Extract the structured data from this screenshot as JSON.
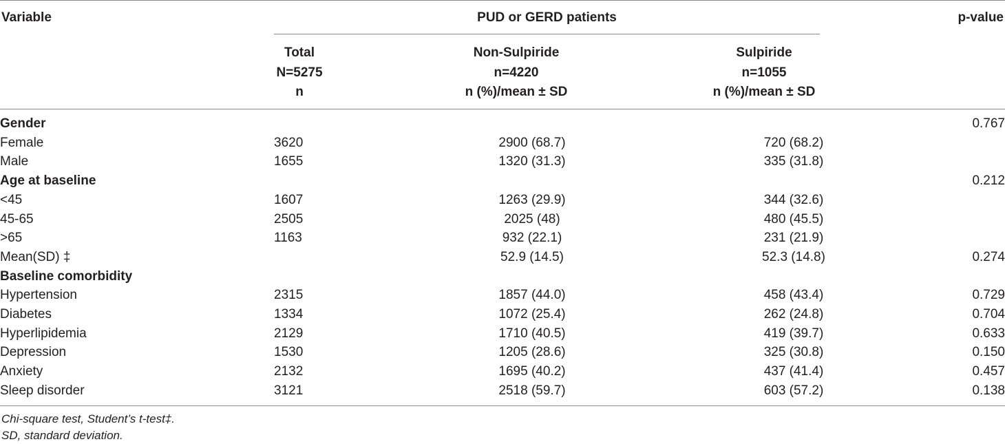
{
  "header": {
    "variable": "Variable",
    "group": "PUD or GERD patients",
    "pvalue": "p-value",
    "total": [
      "Total",
      "N=5275",
      "n"
    ],
    "non_sulpiride": [
      "Non-Sulpiride",
      "n=4220",
      "n (%)/mean ± SD"
    ],
    "sulpiride": [
      "Sulpiride",
      "n=1055",
      "n (%)/mean ± SD"
    ]
  },
  "rows": [
    {
      "label": "Gender",
      "total": "",
      "non": "",
      "sul": "",
      "p": "0.767",
      "section": true
    },
    {
      "label": "Female",
      "total": "3620",
      "non": "2900 (68.7)",
      "sul": "720 (68.2)",
      "p": ""
    },
    {
      "label": "Male",
      "total": "1655",
      "non": "1320 (31.3)",
      "sul": "335 (31.8)",
      "p": ""
    },
    {
      "label": "Age at baseline",
      "total": "",
      "non": "",
      "sul": "",
      "p": "0.212",
      "section": true
    },
    {
      "label": "<45",
      "total": "1607",
      "non": "1263 (29.9)",
      "sul": "344 (32.6)",
      "p": ""
    },
    {
      "label": "45-65",
      "total": "2505",
      "non": "2025 (48)",
      "sul": "480 (45.5)",
      "p": ""
    },
    {
      "label": ">65",
      "total": "1163",
      "non": "932 (22.1)",
      "sul": "231 (21.9)",
      "p": ""
    },
    {
      "label": "Mean(SD) ‡",
      "total": "",
      "non": "52.9 (14.5)",
      "sul": "52.3 (14.8)",
      "p": "0.274"
    },
    {
      "label": "Baseline comorbidity",
      "total": "",
      "non": "",
      "sul": "",
      "p": "",
      "section": true
    },
    {
      "label": "Hypertension",
      "total": "2315",
      "non": "1857 (44.0)",
      "sul": "458 (43.4)",
      "p": "0.729"
    },
    {
      "label": "Diabetes",
      "total": "1334",
      "non": "1072 (25.4)",
      "sul": "262 (24.8)",
      "p": "0.704"
    },
    {
      "label": "Hyperlipidemia",
      "total": "2129",
      "non": "1710 (40.5)",
      "sul": "419 (39.7)",
      "p": "0.633"
    },
    {
      "label": "Depression",
      "total": "1530",
      "non": "1205 (28.6)",
      "sul": "325 (30.8)",
      "p": "0.150"
    },
    {
      "label": "Anxiety",
      "total": "2132",
      "non": "1695 (40.2)",
      "sul": "437 (41.4)",
      "p": "0.457"
    },
    {
      "label": "Sleep disorder",
      "total": "3121",
      "non": "2518 (59.7)",
      "sul": "603 (57.2)",
      "p": "0.138"
    }
  ],
  "notes": [
    "Chi-square test, Student’s t-test‡.",
    "SD, standard deviation."
  ]
}
